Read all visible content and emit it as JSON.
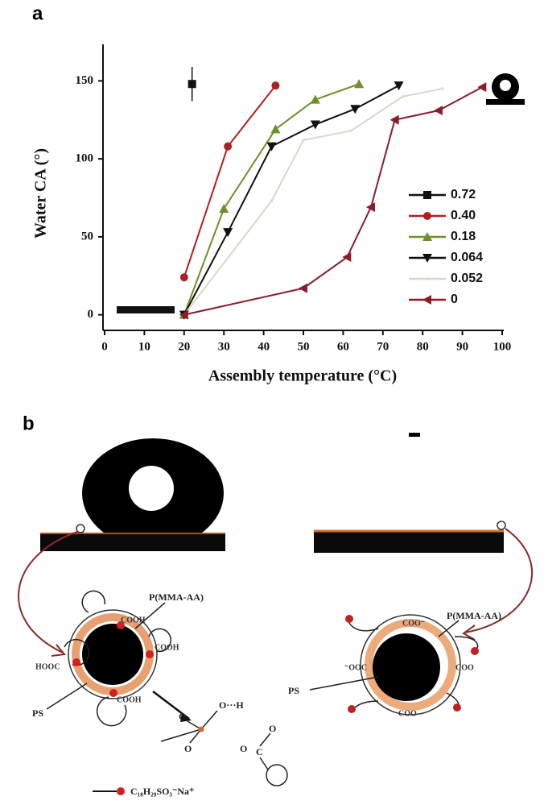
{
  "panel_a_label": "a",
  "panel_b_label": "b",
  "chart_data": {
    "type": "line",
    "xlabel": "Assembly temperature (°C)",
    "ylabel": "Water CA (°)",
    "xlim": [
      0,
      100
    ],
    "xticks": [
      0,
      10,
      20,
      30,
      40,
      50,
      60,
      70,
      80,
      90,
      100
    ],
    "ylim": [
      -10,
      175
    ],
    "yticks": [
      0,
      50,
      100,
      150
    ],
    "grid": false,
    "legend": "right",
    "series": [
      {
        "name": "0.72",
        "color": "#111111",
        "marker": "square",
        "x": [
          22
        ],
        "values": [
          148
        ],
        "errors": [
          11
        ]
      },
      {
        "name": "0.40",
        "color": "#b02020",
        "marker": "circle",
        "x": [
          20,
          31,
          43
        ],
        "values": [
          24,
          108,
          147
        ]
      },
      {
        "name": "0.18",
        "color": "#6f8f2a",
        "marker": "triangle-up",
        "x": [
          20,
          30,
          43,
          53,
          64
        ],
        "values": [
          0,
          68,
          119,
          138,
          148
        ]
      },
      {
        "name": "0.064",
        "color": "#111111",
        "marker": "triangle-down",
        "x": [
          20,
          31,
          42,
          53,
          63,
          74
        ],
        "values": [
          0,
          53,
          108,
          122,
          132,
          147
        ]
      },
      {
        "name": "0.052",
        "color": "#d8d8c8",
        "marker": "none",
        "x": [
          20,
          42,
          50,
          62,
          75,
          85
        ],
        "values": [
          0,
          73,
          112,
          118,
          140,
          145
        ]
      },
      {
        "name": "0",
        "color": "#8a1c2c",
        "marker": "triangle-left",
        "x": [
          20,
          50,
          61,
          67,
          73,
          84,
          95
        ],
        "values": [
          0,
          17,
          37,
          69,
          125,
          131,
          146
        ]
      }
    ]
  },
  "diagram": {
    "labels": [
      "P(MMA-AA)",
      "COOH",
      "COOH",
      "HOOC",
      "COOH",
      "PS",
      "P(MMA-AA)",
      "COO⁻",
      "⁻OOC",
      "COO",
      "PS",
      "COO",
      "O",
      "O",
      "O···H",
      "O",
      "O",
      "C",
      "C₁₈H₂₉SO₃⁻Na⁺"
    ]
  }
}
